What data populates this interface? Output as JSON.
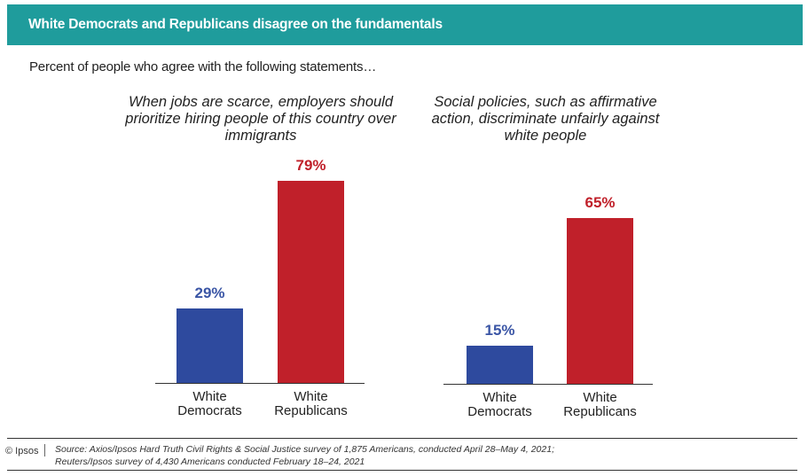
{
  "header": {
    "title": "White Democrats and Republicans disagree on the fundamentals"
  },
  "subtitle": "Percent of people who agree with the following statements…",
  "colors": {
    "header": "#1f9c9c",
    "democrats": "#2e4a9e",
    "republicans": "#c0202a"
  },
  "chart_data": [
    {
      "type": "bar",
      "title": "When jobs are scarce, employers should prioritize hiring people of this country over immigrants",
      "categories": [
        "White Democrats",
        "White Republicans"
      ],
      "values": [
        29,
        79
      ],
      "value_labels": [
        "29%",
        "79%"
      ],
      "ylim": [
        0,
        100
      ]
    },
    {
      "type": "bar",
      "title": "Social policies, such as affirmative action, discriminate unfairly against white people",
      "categories": [
        "White Democrats",
        "White Republicans"
      ],
      "values": [
        15,
        65
      ],
      "value_labels": [
        "15%",
        "65%"
      ],
      "ylim": [
        0,
        100
      ]
    }
  ],
  "footer": {
    "copyright": "© Ipsos",
    "source_line1": "Source: Axios/Ipsos Hard Truth Civil Rights & Social Justice survey of 1,875 Americans, conducted April 28–May 4, 2021;",
    "source_line2": "Reuters/Ipsos survey of 4,430 Americans conducted February 18–24, 2021"
  }
}
